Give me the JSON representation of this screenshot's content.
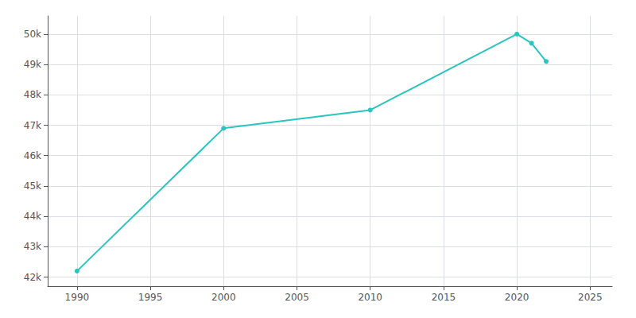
{
  "chart_data": {
    "type": "line",
    "x": [
      1990,
      2000,
      2010,
      2020,
      2021,
      2022
    ],
    "values": [
      42200,
      46900,
      47500,
      50000,
      49700,
      49100
    ],
    "color": "#2bc4c0",
    "marker": "circle",
    "xlim": [
      1988,
      2026.5
    ],
    "xticks": [
      1990,
      1995,
      2000,
      2005,
      2010,
      2015,
      2020,
      2025
    ],
    "ylim": [
      41700,
      50600
    ],
    "yticks": [
      {
        "value": 42000,
        "label": "42k"
      },
      {
        "value": 43000,
        "label": "43k"
      },
      {
        "value": 44000,
        "label": "44k"
      },
      {
        "value": 45000,
        "label": "45k"
      },
      {
        "value": 46000,
        "label": "46k"
      },
      {
        "value": 47000,
        "label": "47k"
      },
      {
        "value": 48000,
        "label": "48k"
      },
      {
        "value": 49000,
        "label": "49k"
      },
      {
        "value": 50000,
        "label": "50k"
      }
    ],
    "grid": true
  }
}
